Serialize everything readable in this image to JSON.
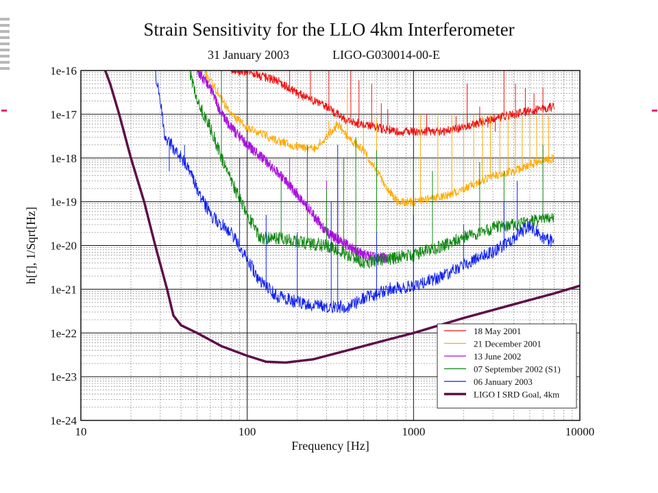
{
  "chart_data": {
    "type": "line",
    "title": "Strain Sensitivity for the LLO 4km Interferometer",
    "subtitle_date": "31 January 2003",
    "subtitle_doc": "LIGO-G030014-00-E",
    "xlabel": "Frequency [Hz]",
    "ylabel": "h[f], 1/Sqrt[Hz]",
    "xscale": "log",
    "yscale": "log",
    "xlim": [
      10,
      10000
    ],
    "ylim": [
      1e-24,
      1e-16
    ],
    "x_tick_labels": [
      "10",
      "100",
      "1000",
      "10000"
    ],
    "y_tick_labels": [
      "1e-16",
      "1e-17",
      "1e-18",
      "1e-19",
      "1e-20",
      "1e-21",
      "1e-22",
      "1e-23",
      "1e-24"
    ],
    "grid": true,
    "legend_position": "bottom-right",
    "series": [
      {
        "name": "18 May 2001",
        "color": "#ee1111",
        "noise": 0.1,
        "points": [
          [
            80,
            1e-16
          ],
          [
            100,
            9e-17
          ],
          [
            150,
            6e-17
          ],
          [
            200,
            3e-17
          ],
          [
            300,
            1.5e-17
          ],
          [
            400,
            7e-18
          ],
          [
            600,
            5e-18
          ],
          [
            800,
            4e-18
          ],
          [
            1000,
            4e-18
          ],
          [
            1500,
            4e-18
          ],
          [
            2000,
            5e-18
          ],
          [
            3000,
            8e-18
          ],
          [
            4000,
            1e-17
          ],
          [
            5000,
            1.2e-17
          ],
          [
            7000,
            1.5e-17
          ]
        ],
        "spikes": [
          [
            92,
            1e-16
          ],
          [
            110,
            1e-16
          ],
          [
            180,
            1e-16
          ],
          [
            240,
            1e-16
          ],
          [
            310,
            1e-16
          ],
          [
            420,
            1e-16
          ],
          [
            470,
            6e-17
          ],
          [
            560,
            5e-17
          ],
          [
            640,
            1.8e-17
          ],
          [
            700,
            1.3e-17
          ],
          [
            1200,
            1e-17
          ],
          [
            1800,
            9e-18
          ],
          [
            2100,
            5e-17
          ],
          [
            2500,
            1.5e-17
          ],
          [
            2800,
            5e-18
          ],
          [
            3100,
            4e-18
          ],
          [
            3500,
            1e-16
          ],
          [
            4100,
            5e-17
          ],
          [
            4700,
            4e-17
          ],
          [
            5300,
            3e-17
          ],
          [
            6000,
            4e-17
          ]
        ]
      },
      {
        "name": "21 December 2001",
        "color": "#ffaa00",
        "noise": 0.1,
        "points": [
          [
            55,
            1e-16
          ],
          [
            60,
            6e-17
          ],
          [
            80,
            1e-17
          ],
          [
            100,
            5e-18
          ],
          [
            150,
            2.5e-18
          ],
          [
            200,
            1.8e-18
          ],
          [
            250,
            1.6e-18
          ],
          [
            300,
            3e-18
          ],
          [
            350,
            6e-18
          ],
          [
            400,
            3e-18
          ],
          [
            500,
            1.5e-18
          ],
          [
            600,
            5e-19
          ],
          [
            700,
            2e-19
          ],
          [
            800,
            1e-19
          ],
          [
            1000,
            1e-19
          ],
          [
            1500,
            1.3e-19
          ],
          [
            2000,
            2e-19
          ],
          [
            3000,
            4e-19
          ],
          [
            4000,
            5e-19
          ],
          [
            5000,
            7e-19
          ],
          [
            7000,
            1e-18
          ]
        ],
        "spikes": [
          [
            120,
            4e-18
          ],
          [
            310,
            7e-18
          ],
          [
            400,
            4e-17
          ],
          [
            500,
            5e-18
          ],
          [
            600,
            8e-18
          ],
          [
            1100,
            1e-17
          ],
          [
            1400,
            9e-18
          ],
          [
            1700,
            1e-17
          ],
          [
            2000,
            9e-18
          ],
          [
            2300,
            1e-17
          ],
          [
            2600,
            9e-18
          ],
          [
            2900,
            1e-17
          ],
          [
            3300,
            1e-17
          ],
          [
            3700,
            1e-17
          ],
          [
            4100,
            1e-17
          ],
          [
            4500,
            9e-18
          ],
          [
            5000,
            1e-17
          ],
          [
            5500,
            9e-18
          ],
          [
            6000,
            1e-17
          ],
          [
            6500,
            9e-18
          ]
        ]
      },
      {
        "name": "13 June 2002",
        "color": "#aa11dd",
        "noise": 0.12,
        "points": [
          [
            50,
            1e-16
          ],
          [
            60,
            4e-17
          ],
          [
            70,
            1e-17
          ],
          [
            80,
            5e-18
          ],
          [
            100,
            2e-18
          ],
          [
            150,
            5e-19
          ],
          [
            200,
            1.5e-19
          ],
          [
            250,
            5e-20
          ],
          [
            300,
            2e-20
          ],
          [
            400,
            1e-20
          ],
          [
            500,
            6e-21
          ],
          [
            700,
            5e-21
          ]
        ],
        "spikes": [
          [
            95,
            3e-18
          ],
          [
            180,
            1e-18
          ],
          [
            230,
            1e-18
          ],
          [
            300,
            3e-19
          ],
          [
            350,
            5e-19
          ]
        ]
      },
      {
        "name": "07 September 2002 (S1)",
        "color": "#118811",
        "noise": 0.15,
        "points": [
          [
            45,
            1e-16
          ],
          [
            50,
            2e-17
          ],
          [
            60,
            5e-18
          ],
          [
            70,
            1e-18
          ],
          [
            80,
            3e-19
          ],
          [
            100,
            5e-20
          ],
          [
            120,
            1.5e-20
          ],
          [
            150,
            1.5e-20
          ],
          [
            200,
            1.2e-20
          ],
          [
            300,
            1e-20
          ],
          [
            400,
            6e-21
          ],
          [
            500,
            4e-21
          ],
          [
            700,
            5e-21
          ],
          [
            1000,
            6e-21
          ],
          [
            1500,
            1e-20
          ],
          [
            2000,
            1.5e-20
          ],
          [
            3000,
            2.5e-20
          ],
          [
            4000,
            3e-20
          ],
          [
            5000,
            3.5e-20
          ],
          [
            7000,
            4e-20
          ]
        ],
        "spikes": [
          [
            70,
            1e-16
          ],
          [
            160,
            3e-19
          ],
          [
            230,
            2e-18
          ],
          [
            300,
            2e-19
          ],
          [
            380,
            1e-18
          ],
          [
            450,
            3e-18
          ],
          [
            600,
            1.5e-18
          ],
          [
            1000,
            1e-18
          ],
          [
            1300,
            5e-19
          ],
          [
            2500,
            8e-19
          ],
          [
            3500,
            5e-19
          ],
          [
            6000,
            2e-18
          ]
        ]
      },
      {
        "name": "06 January 2003",
        "color": "#1122ee",
        "noise": 0.15,
        "points": [
          [
            28,
            1e-16
          ],
          [
            30,
            2e-17
          ],
          [
            32,
            3e-18
          ],
          [
            35,
            2e-18
          ],
          [
            40,
            1e-18
          ],
          [
            45,
            5e-19
          ],
          [
            50,
            2e-19
          ],
          [
            60,
            5e-20
          ],
          [
            80,
            2e-20
          ],
          [
            100,
            5e-21
          ],
          [
            120,
            1.5e-21
          ],
          [
            150,
            7e-22
          ],
          [
            200,
            5e-22
          ],
          [
            300,
            4e-22
          ],
          [
            400,
            4e-22
          ],
          [
            500,
            6e-22
          ],
          [
            700,
            1e-21
          ],
          [
            1000,
            1.2e-21
          ],
          [
            1500,
            2e-21
          ],
          [
            2000,
            3.5e-21
          ],
          [
            3000,
            7e-21
          ],
          [
            4000,
            1.5e-20
          ],
          [
            5000,
            3e-20
          ],
          [
            6000,
            1.5e-20
          ],
          [
            7000,
            1.2e-20
          ]
        ],
        "spikes": [
          [
            34,
            5e-19
          ],
          [
            42,
            2e-18
          ],
          [
            58,
            1e-19
          ],
          [
            90,
            1e-18
          ],
          [
            130,
            5e-20
          ],
          [
            200,
            2e-20
          ],
          [
            320,
            1e-19
          ],
          [
            350,
            2e-18
          ],
          [
            600,
            2e-20
          ],
          [
            1000,
            5e-20
          ],
          [
            2000,
            3e-20
          ],
          [
            3500,
            1e-19
          ],
          [
            4200,
            3e-19
          ]
        ]
      },
      {
        "name": "LIGO I SRD Goal, 4km",
        "color": "#5e0e48",
        "noise": 0,
        "points": [
          [
            14,
            1e-16
          ],
          [
            15,
            5e-17
          ],
          [
            17,
            1e-17
          ],
          [
            20,
            1e-18
          ],
          [
            24,
            1e-19
          ],
          [
            28,
            1e-20
          ],
          [
            33,
            1e-21
          ],
          [
            36,
            2.5e-22
          ],
          [
            40,
            1.5e-22
          ],
          [
            50,
            1e-22
          ],
          [
            70,
            5e-23
          ],
          [
            100,
            3e-23
          ],
          [
            130,
            2.2e-23
          ],
          [
            170,
            2.1e-23
          ],
          [
            250,
            2.5e-23
          ],
          [
            400,
            4e-23
          ],
          [
            700,
            7e-23
          ],
          [
            1000,
            1e-22
          ],
          [
            2000,
            2.2e-22
          ],
          [
            4000,
            4.5e-22
          ],
          [
            7000,
            8e-22
          ],
          [
            10000,
            1.2e-21
          ]
        ],
        "spikes": []
      }
    ]
  },
  "decor": {
    "accent_dash_color": "#e0207a",
    "side_bars_color": "#b8b8b8"
  }
}
